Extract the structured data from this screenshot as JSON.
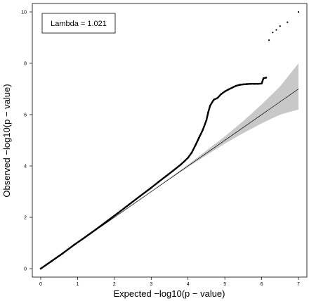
{
  "chart_data": {
    "type": "scatter",
    "title": "",
    "xlabel": "Expected  −log10(p − value)",
    "ylabel": "Observed  −log10(p − value)",
    "xlim": [
      0,
      7
    ],
    "ylim": [
      0,
      10
    ],
    "x_ticks": [
      "0",
      "1",
      "2",
      "3",
      "4",
      "5",
      "6",
      "7"
    ],
    "y_ticks": [
      "0",
      "2",
      "4",
      "6",
      "8",
      "10"
    ],
    "legend": {
      "text": "Lambda = 1.021",
      "position": "top-left"
    },
    "reference_line": {
      "from": [
        0,
        0
      ],
      "to": [
        7,
        7
      ]
    },
    "confidence_band": {
      "x": [
        0,
        1,
        2,
        3,
        3.5,
        4,
        4.5,
        5,
        5.5,
        6,
        6.5,
        7
      ],
      "lower": [
        0,
        1,
        2,
        3,
        3.48,
        3.96,
        4.42,
        4.87,
        5.28,
        5.66,
        6.0,
        6.2
      ],
      "upper": [
        0,
        1,
        2,
        3,
        3.52,
        4.05,
        4.6,
        5.15,
        5.75,
        6.4,
        7.1,
        8.0
      ]
    },
    "series": [
      {
        "points": [
          [
            0.0,
            0.0
          ],
          [
            0.3,
            0.3
          ],
          [
            0.6,
            0.6
          ],
          [
            0.9,
            0.92
          ],
          [
            1.2,
            1.22
          ],
          [
            1.5,
            1.53
          ],
          [
            1.8,
            1.85
          ],
          [
            2.1,
            2.17
          ],
          [
            2.4,
            2.5
          ],
          [
            2.7,
            2.83
          ],
          [
            3.0,
            3.15
          ],
          [
            3.2,
            3.38
          ],
          [
            3.4,
            3.6
          ],
          [
            3.6,
            3.82
          ],
          [
            3.8,
            4.05
          ],
          [
            3.9,
            4.18
          ],
          [
            4.0,
            4.32
          ],
          [
            4.1,
            4.52
          ],
          [
            4.2,
            4.8
          ],
          [
            4.3,
            5.1
          ],
          [
            4.4,
            5.4
          ],
          [
            4.5,
            5.78
          ],
          [
            4.55,
            6.1
          ],
          [
            4.6,
            6.35
          ],
          [
            4.7,
            6.58
          ],
          [
            4.8,
            6.65
          ],
          [
            4.9,
            6.8
          ],
          [
            5.0,
            6.9
          ],
          [
            5.1,
            6.98
          ],
          [
            5.2,
            7.05
          ],
          [
            5.3,
            7.12
          ],
          [
            5.4,
            7.16
          ],
          [
            5.5,
            7.18
          ],
          [
            5.6,
            7.19
          ],
          [
            5.7,
            7.2
          ],
          [
            5.8,
            7.2
          ],
          [
            5.9,
            7.2
          ],
          [
            6.0,
            7.21
          ],
          [
            6.05,
            7.42
          ],
          [
            6.12,
            7.44
          ],
          [
            6.2,
            8.9
          ],
          [
            6.3,
            9.2
          ],
          [
            6.4,
            9.3
          ],
          [
            6.5,
            9.45
          ],
          [
            6.7,
            9.6
          ],
          [
            7.0,
            10.0
          ]
        ]
      }
    ]
  }
}
